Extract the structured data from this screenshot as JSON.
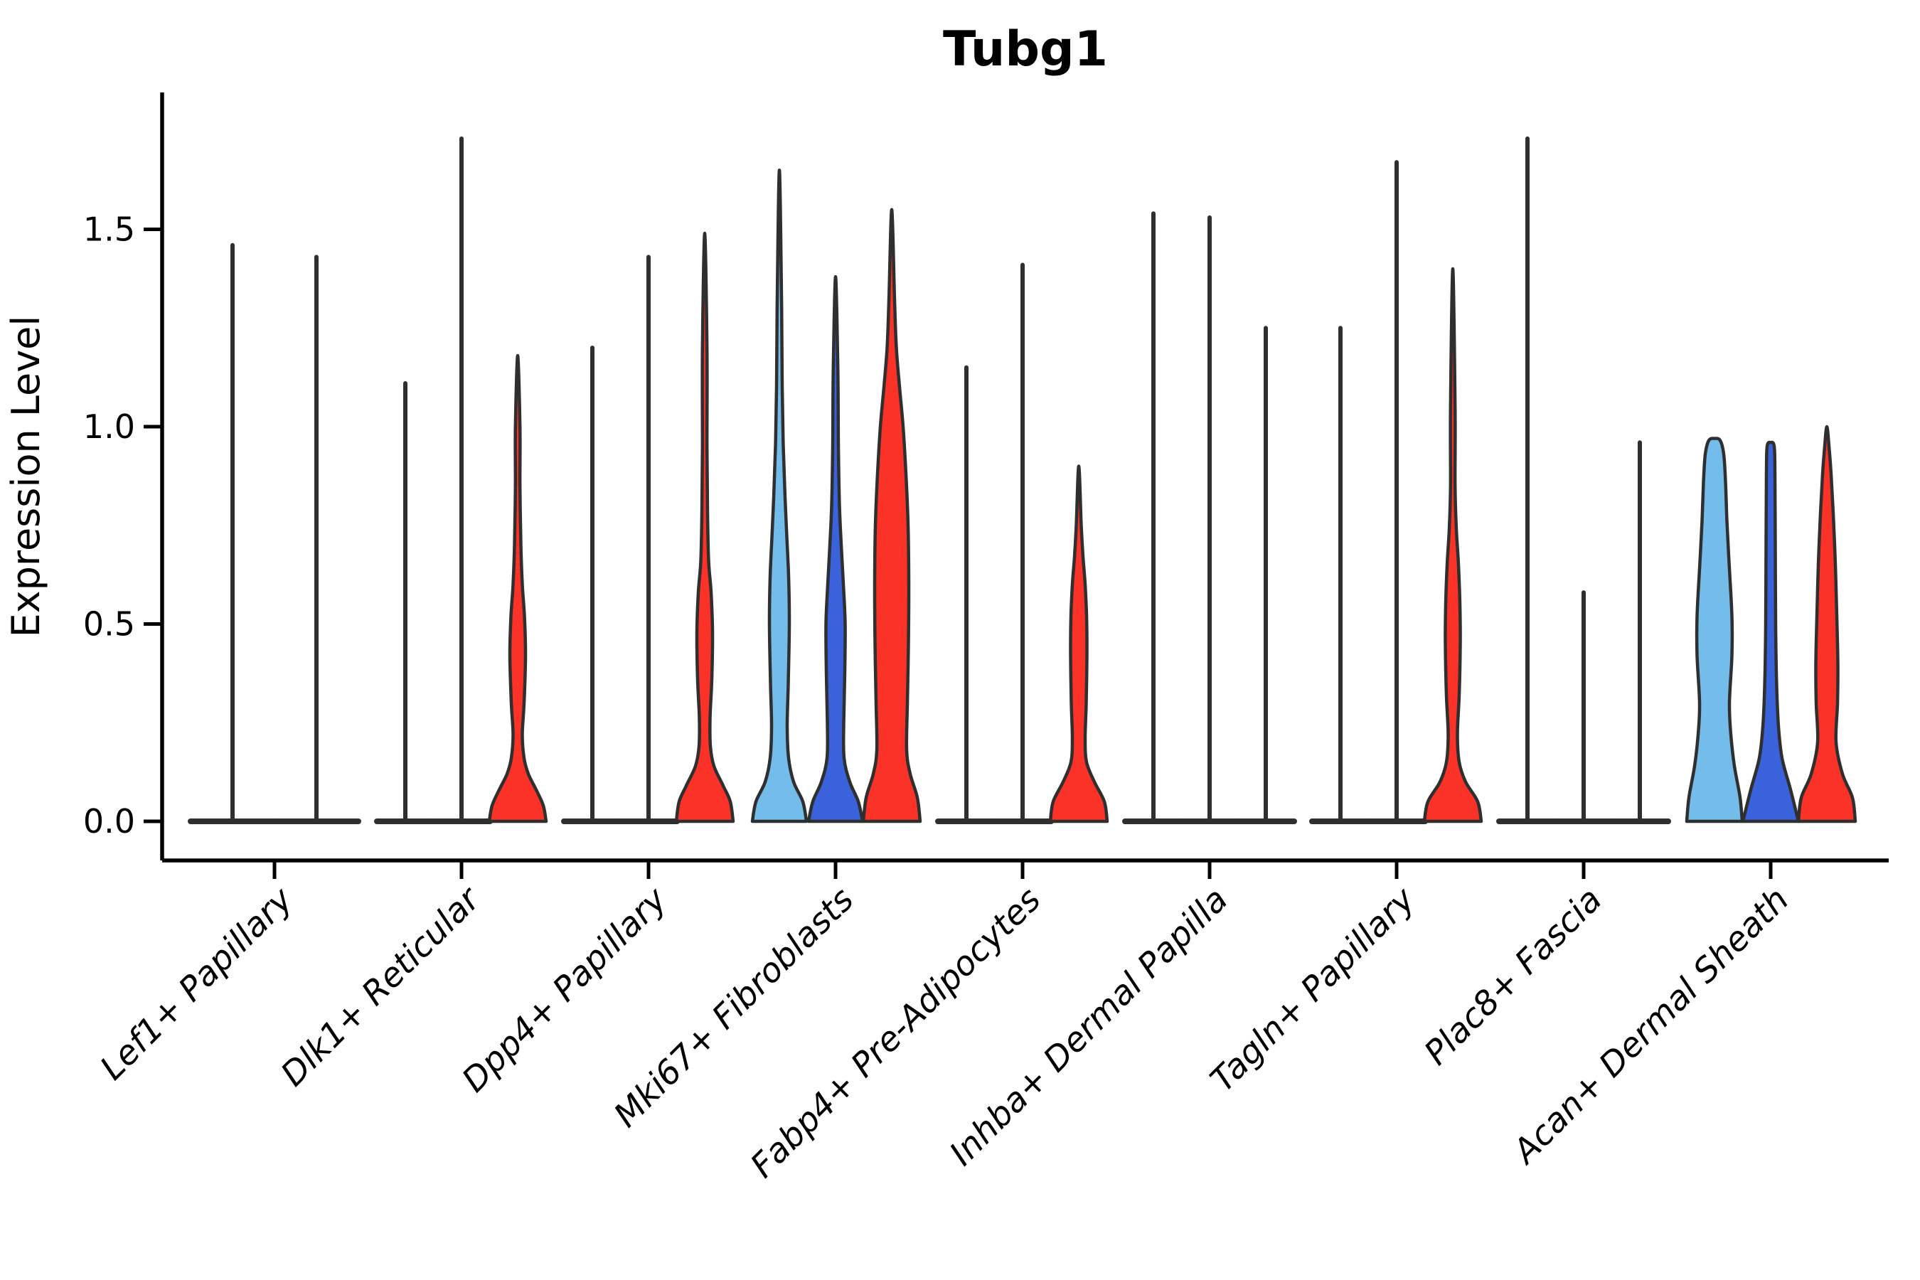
{
  "chart_data": {
    "type": "violin",
    "title": "Tubg1",
    "ylabel": "Expression Level",
    "xlabel": "",
    "ylim": [
      -0.1,
      1.85
    ],
    "yticks": [
      {
        "value": 0.0,
        "label": "0.0"
      },
      {
        "value": 0.5,
        "label": "0.5"
      },
      {
        "value": 1.0,
        "label": "1.0"
      },
      {
        "value": 1.5,
        "label": "1.5"
      }
    ],
    "grid": false,
    "legend": "none",
    "colors": {
      "skyblue": "#74BCE9",
      "blue": "#3A63DB",
      "red": "#FA3227",
      "outline": "#2F2F2F",
      "text": "#000000"
    },
    "categories": [
      "Lef1+ Papillary",
      "Dlk1+ Reticular",
      "Dpp4+ Papillary",
      "Mki67+ Fibroblasts",
      "Fabp4+ Pre-Adipocytes",
      "Inhba+ Dermal Papilla",
      "Tagln+ Papillary",
      "Plac8+ Fascia",
      "Acan+ Dermal Sheath"
    ],
    "groups": [
      {
        "label": "Lef1+ Papillary",
        "violins": [
          {
            "kind": "spike",
            "fill": "none",
            "max": 1.46,
            "offset": -59,
            "base_halfwidth": 59
          },
          {
            "kind": "spike",
            "fill": "none",
            "max": 1.43,
            "offset": 59,
            "base_halfwidth": 59
          }
        ]
      },
      {
        "label": "Dlk1+ Reticular",
        "violins": [
          {
            "kind": "spike",
            "fill": "none",
            "max": 1.11,
            "offset": -79,
            "base_halfwidth": 40
          },
          {
            "kind": "spike",
            "fill": "none",
            "max": 1.73,
            "offset": 0,
            "base_halfwidth": 40
          },
          {
            "kind": "violin",
            "fill": "red",
            "max": 1.18,
            "offset": 79,
            "profile": [
              [
                0,
                40
              ],
              [
                0.04,
                36
              ],
              [
                0.08,
                26
              ],
              [
                0.12,
                15
              ],
              [
                0.16,
                9
              ],
              [
                0.22,
                6.5
              ],
              [
                0.3,
                9
              ],
              [
                0.42,
                11
              ],
              [
                0.52,
                9.5
              ],
              [
                0.6,
                6.5
              ],
              [
                0.7,
                4.5
              ],
              [
                0.85,
                3.2
              ],
              [
                1.0,
                3.2
              ],
              [
                1.18,
                0
              ]
            ]
          }
        ]
      },
      {
        "label": "Dpp4+ Papillary",
        "violins": [
          {
            "kind": "spike",
            "fill": "none",
            "max": 1.2,
            "offset": -79,
            "base_halfwidth": 40
          },
          {
            "kind": "spike",
            "fill": "none",
            "max": 1.43,
            "offset": 0,
            "base_halfwidth": 40
          },
          {
            "kind": "violin",
            "fill": "red",
            "max": 1.49,
            "offset": 79,
            "profile": [
              [
                0,
                40
              ],
              [
                0.05,
                36
              ],
              [
                0.09,
                26
              ],
              [
                0.14,
                13
              ],
              [
                0.19,
                8
              ],
              [
                0.26,
                7.5
              ],
              [
                0.36,
                10
              ],
              [
                0.48,
                11
              ],
              [
                0.58,
                9
              ],
              [
                0.66,
                5.5
              ],
              [
                0.78,
                4
              ],
              [
                0.95,
                3.2
              ],
              [
                1.2,
                3.2
              ],
              [
                1.49,
                0
              ]
            ]
          }
        ]
      },
      {
        "label": "Mki67+ Fibroblasts",
        "violins": [
          {
            "kind": "violin",
            "fill": "skyblue",
            "max": 1.65,
            "offset": -79,
            "profile": [
              [
                0,
                38
              ],
              [
                0.05,
                33
              ],
              [
                0.1,
                20
              ],
              [
                0.16,
                13
              ],
              [
                0.24,
                11
              ],
              [
                0.35,
                12.5
              ],
              [
                0.5,
                14
              ],
              [
                0.62,
                13
              ],
              [
                0.72,
                10.5
              ],
              [
                0.82,
                8
              ],
              [
                0.95,
                5.5
              ],
              [
                1.1,
                4
              ],
              [
                1.3,
                3.2
              ],
              [
                1.65,
                0
              ]
            ]
          },
          {
            "kind": "violin",
            "fill": "blue",
            "max": 1.38,
            "offset": 0,
            "profile": [
              [
                0,
                38
              ],
              [
                0.05,
                32
              ],
              [
                0.1,
                20
              ],
              [
                0.16,
                12
              ],
              [
                0.25,
                11.5
              ],
              [
                0.38,
                13
              ],
              [
                0.5,
                13.5
              ],
              [
                0.6,
                11
              ],
              [
                0.7,
                8
              ],
              [
                0.8,
                5.5
              ],
              [
                0.95,
                4
              ],
              [
                1.15,
                3.2
              ],
              [
                1.38,
                0
              ]
            ]
          },
          {
            "kind": "violin",
            "fill": "red",
            "max": 1.55,
            "offset": 79,
            "profile": [
              [
                0,
                40
              ],
              [
                0.06,
                36
              ],
              [
                0.12,
                26
              ],
              [
                0.18,
                21
              ],
              [
                0.3,
                22
              ],
              [
                0.45,
                23.5
              ],
              [
                0.6,
                24
              ],
              [
                0.75,
                23
              ],
              [
                0.88,
                20
              ],
              [
                1.0,
                16
              ],
              [
                1.1,
                11
              ],
              [
                1.2,
                6.5
              ],
              [
                1.32,
                4
              ],
              [
                1.55,
                0
              ]
            ]
          }
        ]
      },
      {
        "label": "Fabp4+ Pre-Adipocytes",
        "violins": [
          {
            "kind": "spike",
            "fill": "none",
            "max": 1.15,
            "offset": -79,
            "base_halfwidth": 40
          },
          {
            "kind": "spike",
            "fill": "none",
            "max": 1.41,
            "offset": 0,
            "base_halfwidth": 40
          },
          {
            "kind": "violin",
            "fill": "red",
            "max": 0.9,
            "offset": 79,
            "profile": [
              [
                0,
                40
              ],
              [
                0.05,
                36
              ],
              [
                0.1,
                22
              ],
              [
                0.15,
                11
              ],
              [
                0.21,
                9
              ],
              [
                0.3,
                10.5
              ],
              [
                0.42,
                11.5
              ],
              [
                0.52,
                11
              ],
              [
                0.6,
                9
              ],
              [
                0.67,
                6
              ],
              [
                0.75,
                3.5
              ],
              [
                0.9,
                0
              ]
            ]
          }
        ]
      },
      {
        "label": "Inhba+ Dermal Papilla",
        "violins": [
          {
            "kind": "spike",
            "fill": "none",
            "max": 1.54,
            "offset": -79,
            "base_halfwidth": 40
          },
          {
            "kind": "spike",
            "fill": "none",
            "max": 1.53,
            "offset": 0,
            "base_halfwidth": 40
          },
          {
            "kind": "spike",
            "fill": "none",
            "max": 1.25,
            "offset": 79,
            "base_halfwidth": 40
          }
        ]
      },
      {
        "label": "Tagln+ Papillary",
        "violins": [
          {
            "kind": "spike",
            "fill": "none",
            "max": 1.25,
            "offset": -79,
            "base_halfwidth": 40
          },
          {
            "kind": "spike",
            "fill": "none",
            "max": 1.67,
            "offset": 0,
            "base_halfwidth": 40
          },
          {
            "kind": "violin",
            "fill": "red",
            "max": 1.4,
            "offset": 79,
            "profile": [
              [
                0,
                40
              ],
              [
                0.05,
                35
              ],
              [
                0.1,
                18
              ],
              [
                0.15,
                9
              ],
              [
                0.22,
                6.5
              ],
              [
                0.32,
                9
              ],
              [
                0.45,
                10.5
              ],
              [
                0.55,
                10
              ],
              [
                0.65,
                8
              ],
              [
                0.74,
                5
              ],
              [
                0.85,
                3.2
              ],
              [
                1.05,
                3.2
              ],
              [
                1.4,
                0
              ]
            ]
          }
        ]
      },
      {
        "label": "Plac8+ Fascia",
        "violins": [
          {
            "kind": "spike",
            "fill": "none",
            "max": 1.73,
            "offset": -79,
            "base_halfwidth": 40
          },
          {
            "kind": "spike",
            "fill": "none",
            "max": 0.58,
            "offset": 0,
            "base_halfwidth": 40
          },
          {
            "kind": "spike",
            "fill": "none",
            "max": 0.96,
            "offset": 79,
            "base_halfwidth": 40
          }
        ]
      },
      {
        "label": "Acan+ Dermal Sheath",
        "violins": [
          {
            "kind": "violin",
            "fill": "skyblue",
            "max": 0.97,
            "offset": -79,
            "profile": [
              [
                0,
                39
              ],
              [
                0.06,
                36
              ],
              [
                0.14,
                28
              ],
              [
                0.22,
                23
              ],
              [
                0.3,
                21
              ],
              [
                0.42,
                24.5
              ],
              [
                0.52,
                24.5
              ],
              [
                0.64,
                21
              ],
              [
                0.76,
                17.5
              ],
              [
                0.86,
                15.5
              ],
              [
                0.93,
                13
              ],
              [
                0.965,
                8
              ],
              [
                0.97,
                0
              ]
            ]
          },
          {
            "kind": "violin",
            "fill": "blue",
            "max": 0.96,
            "offset": 0,
            "profile": [
              [
                0,
                39
              ],
              [
                0.08,
                28
              ],
              [
                0.16,
                16
              ],
              [
                0.24,
                11
              ],
              [
                0.34,
                8.5
              ],
              [
                0.5,
                7
              ],
              [
                0.7,
                6.5
              ],
              [
                0.88,
                6
              ],
              [
                0.95,
                5
              ],
              [
                0.96,
                0
              ]
            ]
          },
          {
            "kind": "violin",
            "fill": "red",
            "max": 1.0,
            "offset": 79,
            "profile": [
              [
                0,
                40
              ],
              [
                0.06,
                36
              ],
              [
                0.12,
                22
              ],
              [
                0.2,
                13
              ],
              [
                0.3,
                15
              ],
              [
                0.4,
                15.5
              ],
              [
                0.52,
                14
              ],
              [
                0.65,
                12
              ],
              [
                0.78,
                9
              ],
              [
                0.88,
                6
              ],
              [
                0.94,
                3.5
              ],
              [
                1.0,
                0
              ]
            ]
          }
        ]
      }
    ]
  }
}
